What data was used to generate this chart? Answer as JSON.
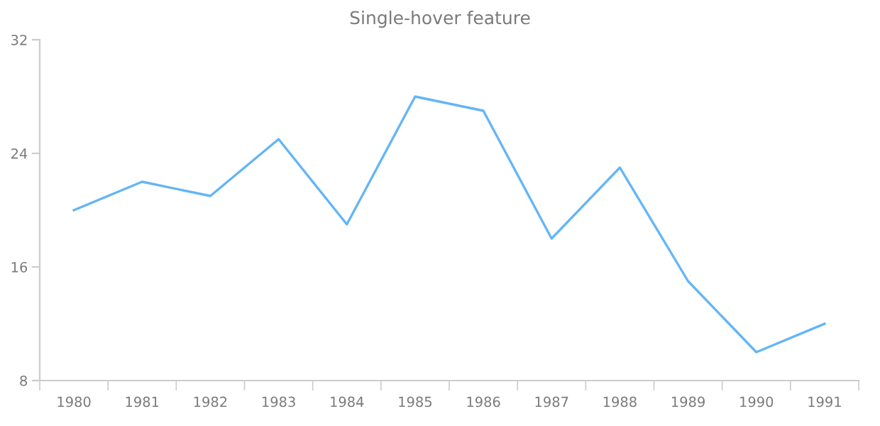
{
  "chart_data": {
    "type": "line",
    "title": "Single-hover feature",
    "categories": [
      "1980",
      "1981",
      "1982",
      "1983",
      "1984",
      "1985",
      "1986",
      "1987",
      "1988",
      "1989",
      "1990",
      "1991"
    ],
    "series": [
      {
        "color": "#64b5f6",
        "values": [
          20,
          22,
          21,
          25,
          19,
          28,
          27,
          18,
          23,
          15,
          10,
          12
        ]
      }
    ],
    "ylim": [
      8,
      32
    ],
    "yticks": [
      8,
      16,
      24,
      32
    ],
    "grid": false,
    "legend": false,
    "marker": "none",
    "line_style": "solid"
  }
}
